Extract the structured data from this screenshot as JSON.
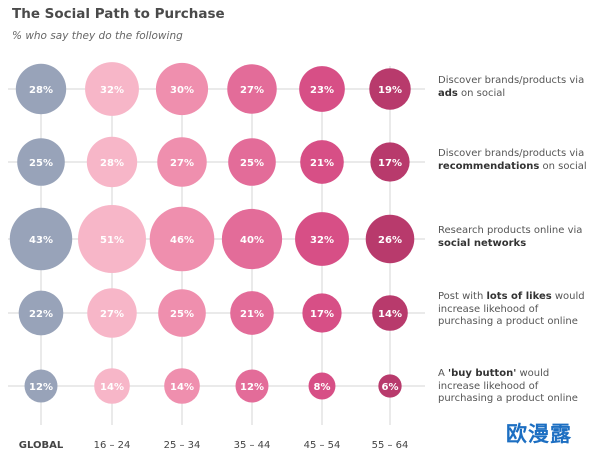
{
  "title": "The Social Path to Purchase",
  "subtitle": "% who say they do the following",
  "watermark": "欧漫露",
  "chart_data": {
    "type": "bubble-grid",
    "title": "The Social Path to Purchase",
    "subtitle": "% who say they do the following",
    "categories": [
      "GLOBAL",
      "16 – 24",
      "25 – 34",
      "35 – 44",
      "45 – 54",
      "55 – 64"
    ],
    "category_colors": [
      "#98a3b9",
      "#f7b6c8",
      "#ef8fae",
      "#e36c99",
      "#d74f86",
      "#b83a6c"
    ],
    "rows": [
      {
        "label_pre": "Discover brands/products via ",
        "label_bold": "ads",
        "label_post": " on social",
        "values": [
          28,
          32,
          30,
          27,
          23,
          19
        ]
      },
      {
        "label_pre": "Discover brands/products via ",
        "label_bold": "recommendations",
        "label_post": " on social",
        "values": [
          25,
          28,
          27,
          25,
          21,
          17
        ]
      },
      {
        "label_pre": "Research products online via ",
        "label_bold": "social networks",
        "label_post": "",
        "values": [
          43,
          51,
          46,
          40,
          32,
          26
        ]
      },
      {
        "label_pre": "Post with ",
        "label_bold": "lots of likes",
        "label_post": " would increase likehood of purchasing a product online",
        "values": [
          22,
          27,
          25,
          21,
          17,
          14
        ]
      },
      {
        "label_pre": "A ",
        "label_bold": "'buy button'",
        "label_post": " would increase likehood of purchasing a product online",
        "values": [
          12,
          14,
          14,
          12,
          8,
          6
        ]
      }
    ],
    "value_suffix": "%"
  }
}
